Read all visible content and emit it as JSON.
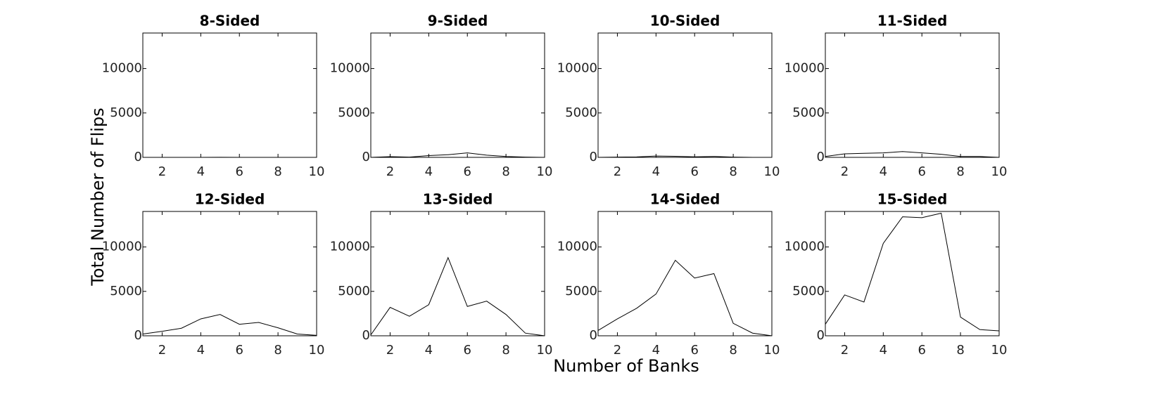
{
  "ylabel": "Total Number of Flips",
  "xlabel": "Number of Banks",
  "chart_data": [
    {
      "type": "line",
      "title": "8-Sided",
      "x": [
        1,
        2,
        3,
        4,
        5,
        6,
        7,
        8,
        9,
        10
      ],
      "values": [
        0,
        0,
        0,
        0,
        10,
        0,
        0,
        0,
        0,
        0
      ],
      "color": "#000000",
      "xlim": [
        1,
        10
      ],
      "ylim": [
        0,
        14000
      ],
      "xticks": [
        2,
        4,
        6,
        8,
        10
      ],
      "yticks": [
        0,
        5000,
        10000
      ]
    },
    {
      "type": "line",
      "title": "9-Sided",
      "x": [
        1,
        2,
        3,
        4,
        5,
        6,
        7,
        8,
        9,
        10
      ],
      "values": [
        0,
        80,
        30,
        200,
        300,
        500,
        250,
        100,
        30,
        0
      ],
      "color": "#000000",
      "xlim": [
        1,
        10
      ],
      "ylim": [
        0,
        14000
      ],
      "xticks": [
        2,
        4,
        6,
        8,
        10
      ],
      "yticks": [
        0,
        5000,
        10000
      ]
    },
    {
      "type": "line",
      "title": "10-Sided",
      "x": [
        1,
        2,
        3,
        4,
        5,
        6,
        7,
        8,
        9,
        10
      ],
      "values": [
        0,
        30,
        50,
        150,
        120,
        60,
        100,
        30,
        0,
        0
      ],
      "color": "#000000",
      "xlim": [
        1,
        10
      ],
      "ylim": [
        0,
        14000
      ],
      "xticks": [
        2,
        4,
        6,
        8,
        10
      ],
      "yticks": [
        0,
        5000,
        10000
      ]
    },
    {
      "type": "line",
      "title": "11-Sided",
      "x": [
        1,
        2,
        3,
        4,
        5,
        6,
        7,
        8,
        9,
        10
      ],
      "values": [
        100,
        400,
        450,
        500,
        650,
        500,
        350,
        100,
        100,
        0
      ],
      "color": "#000000",
      "xlim": [
        1,
        10
      ],
      "ylim": [
        0,
        14000
      ],
      "xticks": [
        2,
        4,
        6,
        8,
        10
      ],
      "yticks": [
        0,
        5000,
        10000
      ]
    },
    {
      "type": "line",
      "title": "12-Sided",
      "x": [
        1,
        2,
        3,
        4,
        5,
        6,
        7,
        8,
        9,
        10
      ],
      "values": [
        200,
        500,
        850,
        1900,
        2400,
        1300,
        1500,
        900,
        200,
        50
      ],
      "color": "#000000",
      "xlim": [
        1,
        10
      ],
      "ylim": [
        0,
        14000
      ],
      "xticks": [
        2,
        4,
        6,
        8,
        10
      ],
      "yticks": [
        0,
        5000,
        10000
      ]
    },
    {
      "type": "line",
      "title": "13-Sided",
      "x": [
        1,
        2,
        3,
        4,
        5,
        6,
        7,
        8,
        9,
        10
      ],
      "values": [
        100,
        3200,
        2200,
        3500,
        8800,
        3300,
        3900,
        2400,
        300,
        0
      ],
      "color": "#000000",
      "xlim": [
        1,
        10
      ],
      "ylim": [
        0,
        14000
      ],
      "xticks": [
        2,
        4,
        6,
        8,
        10
      ],
      "yticks": [
        0,
        5000,
        10000
      ]
    },
    {
      "type": "line",
      "title": "14-Sided",
      "x": [
        1,
        2,
        3,
        4,
        5,
        6,
        7,
        8,
        9,
        10
      ],
      "values": [
        600,
        1900,
        3100,
        4700,
        8500,
        6500,
        7000,
        1400,
        300,
        0
      ],
      "color": "#000000",
      "xlim": [
        1,
        10
      ],
      "ylim": [
        0,
        14000
      ],
      "xticks": [
        2,
        4,
        6,
        8,
        10
      ],
      "yticks": [
        0,
        5000,
        10000
      ]
    },
    {
      "type": "line",
      "title": "15-Sided",
      "x": [
        1,
        2,
        3,
        4,
        5,
        6,
        7,
        8,
        9,
        10
      ],
      "values": [
        1300,
        4600,
        3800,
        10400,
        13400,
        13300,
        13800,
        2100,
        700,
        550
      ],
      "color": "#000000",
      "xlim": [
        1,
        10
      ],
      "ylim": [
        0,
        14000
      ],
      "xticks": [
        2,
        4,
        6,
        8,
        10
      ],
      "yticks": [
        0,
        5000,
        10000
      ]
    }
  ]
}
